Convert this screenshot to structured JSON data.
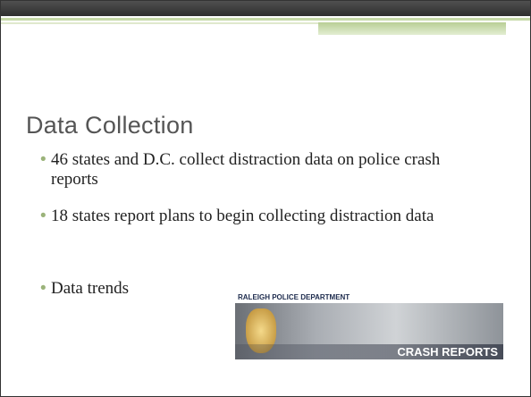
{
  "slide": {
    "title": "Data Collection",
    "bullets": [
      "46 states and D.C. collect distraction data on police crash reports",
      "18 states report plans to begin collecting distraction data",
      "Data trends"
    ],
    "image": {
      "header": "RALEIGH POLICE DEPARTMENT",
      "label": "CRASH REPORTS"
    }
  }
}
